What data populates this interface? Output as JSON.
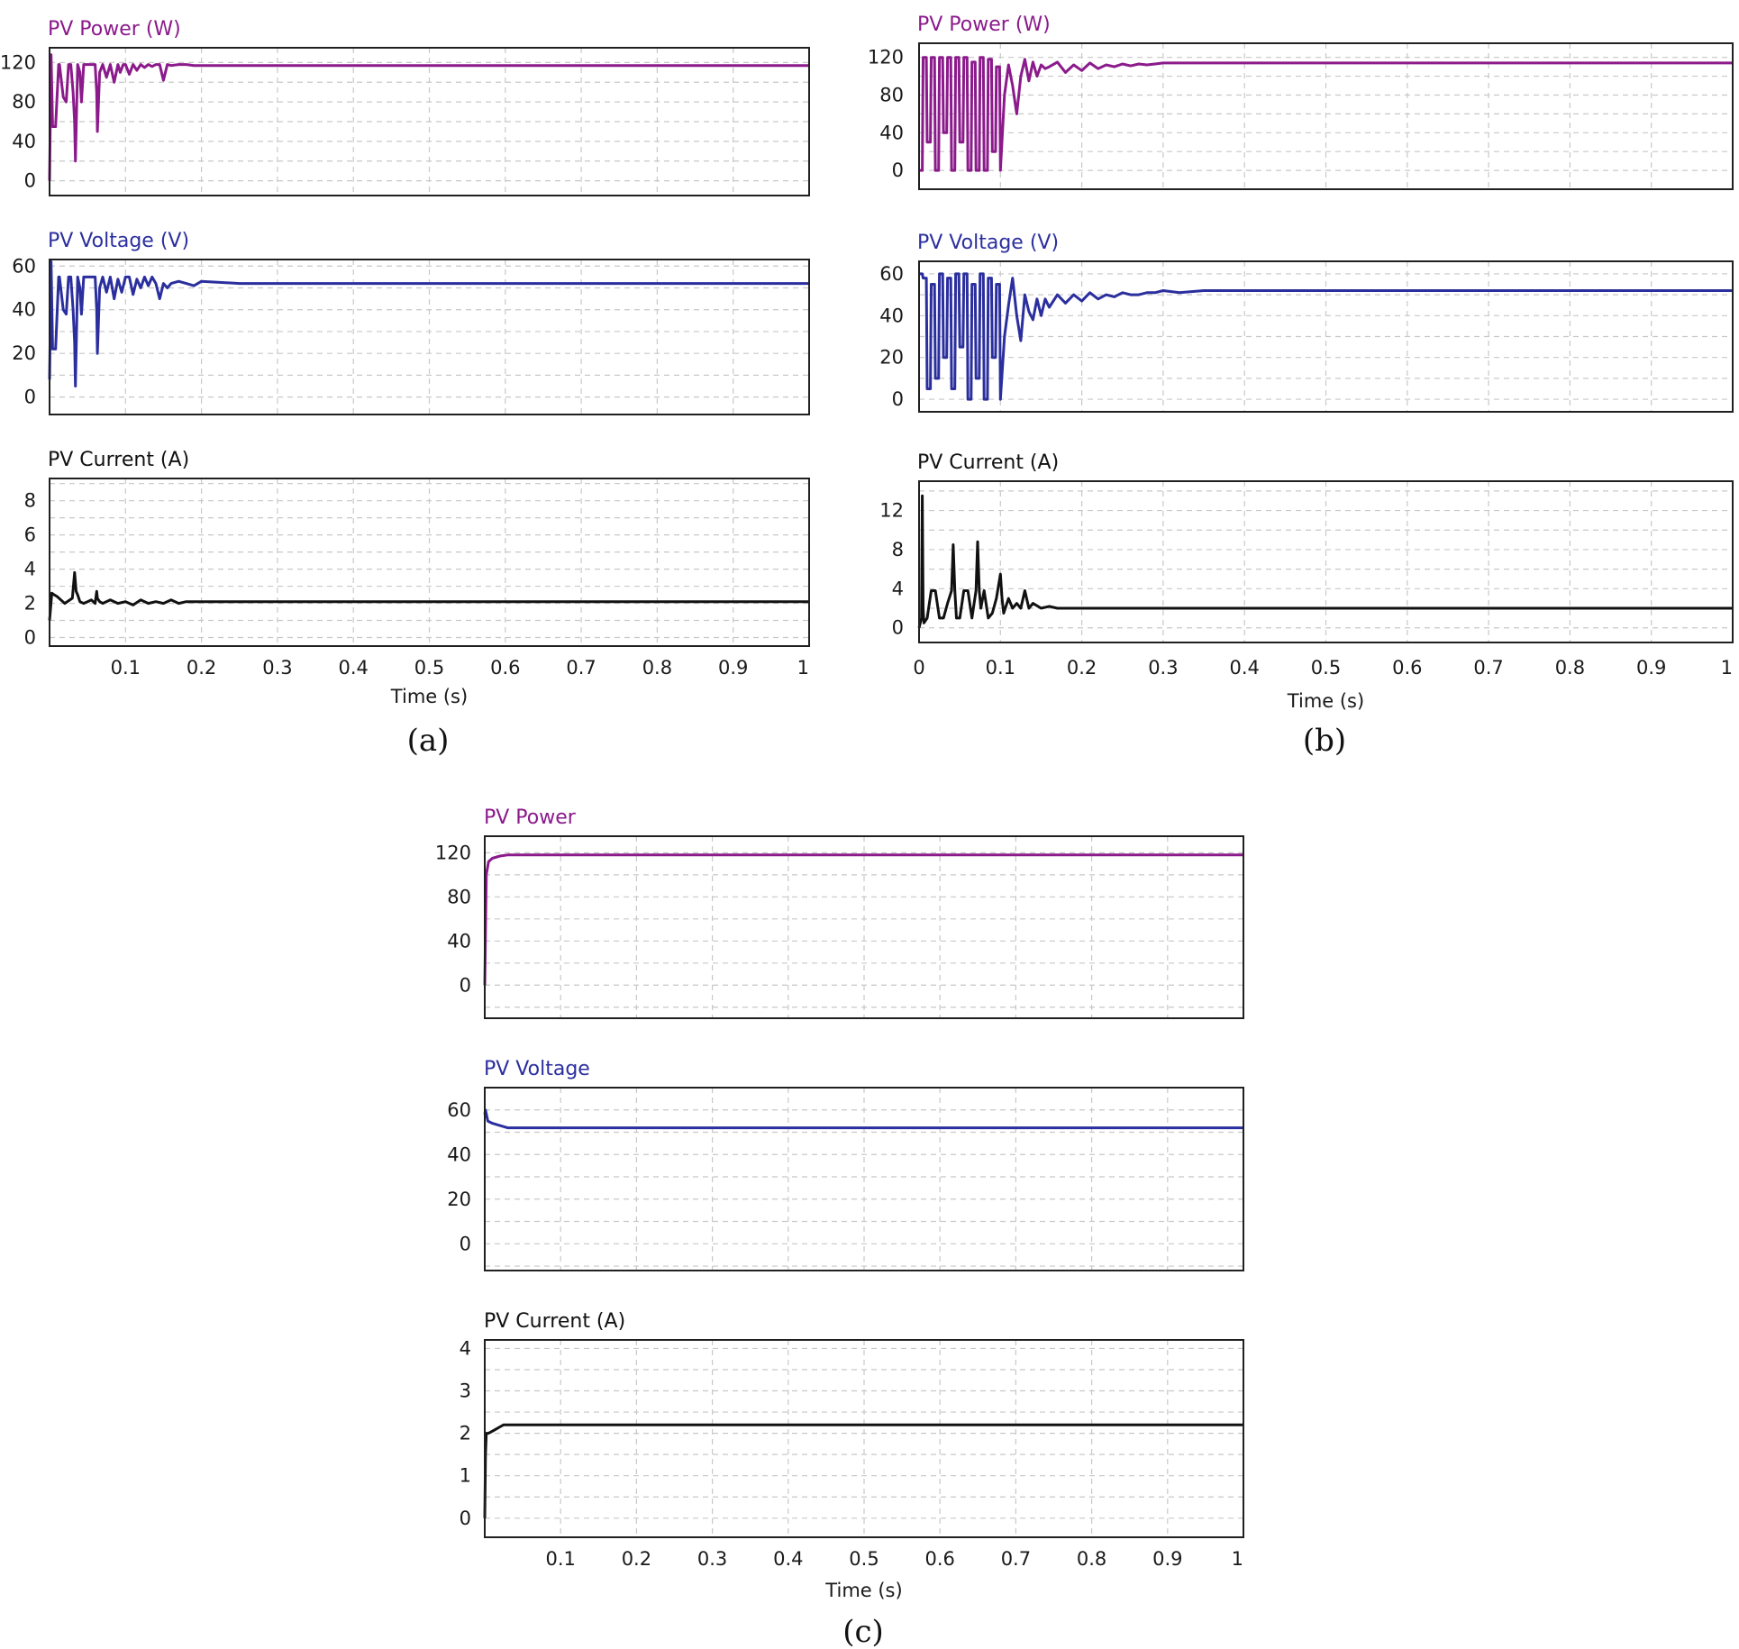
{
  "colors": {
    "power": "#8b1a8b",
    "voltage": "#2b2f9e",
    "current": "#111111"
  },
  "figures": [
    {
      "id": "a",
      "caption": "(a)",
      "xlabel": "Time (s)",
      "xticks": [
        "0.1",
        "0.2",
        "0.3",
        "0.4",
        "0.5",
        "0.6",
        "0.7",
        "0.8",
        "0.9",
        "1"
      ],
      "panels": [
        {
          "type": "line",
          "name": "power",
          "title": "PV Power (W)",
          "color_key": "power",
          "ylim": [
            -15,
            135
          ],
          "yticks": [
            "0",
            "40",
            "80",
            "120"
          ],
          "ytick_values": [
            0,
            40,
            80,
            120
          ],
          "x": [
            0,
            0.002,
            0.004,
            0.008,
            0.012,
            0.013,
            0.018,
            0.022,
            0.025,
            0.028,
            0.031,
            0.033,
            0.034,
            0.037,
            0.04,
            0.042,
            0.045,
            0.05,
            0.055,
            0.06,
            0.062,
            0.063,
            0.066,
            0.07,
            0.075,
            0.08,
            0.085,
            0.09,
            0.093,
            0.097,
            0.1,
            0.105,
            0.11,
            0.115,
            0.12,
            0.125,
            0.13,
            0.135,
            0.14,
            0.145,
            0.15,
            0.155,
            0.16,
            0.17,
            0.18,
            0.19,
            0.2,
            1.0
          ],
          "y": [
            0,
            128,
            55,
            55,
            118,
            118,
            85,
            80,
            118,
            118,
            90,
            60,
            20,
            118,
            110,
            80,
            118,
            118,
            118,
            118,
            90,
            50,
            110,
            118,
            105,
            118,
            100,
            118,
            110,
            118,
            118,
            108,
            118,
            112,
            118,
            115,
            118,
            116,
            118,
            118,
            102,
            118,
            117,
            118,
            118,
            117,
            117,
            117
          ]
        },
        {
          "type": "line",
          "name": "voltage",
          "title": "PV Voltage (V)",
          "color_key": "voltage",
          "ylim": [
            -8,
            63
          ],
          "yticks": [
            "0",
            "20",
            "40",
            "60"
          ],
          "ytick_values": [
            0,
            20,
            40,
            60
          ],
          "x": [
            0,
            0.002,
            0.004,
            0.008,
            0.012,
            0.013,
            0.018,
            0.022,
            0.025,
            0.028,
            0.031,
            0.033,
            0.034,
            0.037,
            0.04,
            0.042,
            0.045,
            0.05,
            0.055,
            0.06,
            0.062,
            0.063,
            0.066,
            0.07,
            0.075,
            0.08,
            0.085,
            0.09,
            0.095,
            0.1,
            0.105,
            0.11,
            0.115,
            0.12,
            0.125,
            0.13,
            0.135,
            0.14,
            0.145,
            0.15,
            0.155,
            0.16,
            0.17,
            0.18,
            0.19,
            0.2,
            0.25,
            0.3,
            1.0
          ],
          "y": [
            8,
            62,
            22,
            22,
            55,
            55,
            40,
            38,
            55,
            55,
            40,
            25,
            5,
            55,
            50,
            38,
            55,
            55,
            55,
            55,
            40,
            20,
            50,
            55,
            48,
            55,
            45,
            54,
            48,
            55,
            55,
            47,
            54,
            50,
            55,
            51,
            55,
            52,
            45,
            52,
            50,
            52,
            53,
            52,
            51,
            53,
            52,
            52,
            52
          ]
        },
        {
          "type": "line",
          "name": "current",
          "title": "PV Current (A)",
          "color_key": "current",
          "ylim": [
            -0.5,
            9.3
          ],
          "yticks": [
            "0",
            "2",
            "4",
            "6",
            "8"
          ],
          "ytick_values": [
            0,
            2,
            4,
            6,
            8
          ],
          "x": [
            0,
            0.003,
            0.006,
            0.01,
            0.015,
            0.02,
            0.03,
            0.033,
            0.035,
            0.037,
            0.04,
            0.045,
            0.05,
            0.055,
            0.06,
            0.062,
            0.063,
            0.066,
            0.07,
            0.08,
            0.09,
            0.1,
            0.11,
            0.12,
            0.13,
            0.14,
            0.15,
            0.16,
            0.17,
            0.18,
            0.19,
            0.2,
            1.0
          ],
          "y": [
            1.0,
            2.6,
            2.5,
            2.4,
            2.2,
            2.0,
            2.3,
            3.8,
            2.7,
            2.5,
            2.1,
            2.0,
            2.1,
            2.2,
            2.0,
            2.7,
            2.3,
            2.1,
            2.0,
            2.2,
            2.0,
            2.1,
            1.9,
            2.2,
            2.0,
            2.1,
            2.0,
            2.2,
            2.0,
            2.1,
            2.1,
            2.1,
            2.1
          ]
        }
      ]
    },
    {
      "id": "b",
      "caption": "(b)",
      "xlabel": "Time (s)",
      "xticks": [
        "0",
        "0.1",
        "0.2",
        "0.3",
        "0.4",
        "0.5",
        "0.6",
        "0.7",
        "0.8",
        "0.9",
        "1"
      ],
      "panels": [
        {
          "type": "line",
          "name": "power",
          "title": "PV Power (W)",
          "color_key": "power",
          "ylim": [
            -20,
            135
          ],
          "yticks": [
            "0",
            "40",
            "80",
            "120"
          ],
          "ytick_values": [
            0,
            40,
            80,
            120
          ],
          "x": [
            0,
            0.004,
            0.005,
            0.009,
            0.01,
            0.014,
            0.015,
            0.019,
            0.02,
            0.024,
            0.025,
            0.029,
            0.03,
            0.034,
            0.035,
            0.039,
            0.04,
            0.044,
            0.045,
            0.049,
            0.05,
            0.054,
            0.055,
            0.059,
            0.06,
            0.064,
            0.065,
            0.069,
            0.07,
            0.074,
            0.075,
            0.079,
            0.08,
            0.084,
            0.085,
            0.089,
            0.09,
            0.094,
            0.095,
            0.099,
            0.1,
            0.105,
            0.11,
            0.115,
            0.12,
            0.125,
            0.13,
            0.135,
            0.14,
            0.145,
            0.15,
            0.155,
            0.16,
            0.17,
            0.18,
            0.19,
            0.2,
            0.21,
            0.22,
            0.23,
            0.24,
            0.25,
            0.26,
            0.27,
            0.28,
            0.29,
            0.3,
            0.32,
            1.0
          ],
          "y": [
            0,
            0,
            120,
            120,
            30,
            30,
            120,
            120,
            0,
            0,
            120,
            120,
            40,
            40,
            120,
            120,
            0,
            0,
            120,
            120,
            30,
            30,
            120,
            120,
            0,
            0,
            115,
            115,
            0,
            0,
            120,
            120,
            0,
            0,
            118,
            118,
            20,
            20,
            110,
            110,
            0,
            80,
            112,
            90,
            60,
            100,
            118,
            95,
            115,
            100,
            112,
            108,
            110,
            115,
            104,
            112,
            106,
            114,
            108,
            112,
            110,
            113,
            111,
            113,
            112,
            113,
            114,
            114,
            114
          ]
        },
        {
          "type": "line",
          "name": "voltage",
          "title": "PV Voltage (V)",
          "color_key": "voltage",
          "ylim": [
            -6,
            66
          ],
          "yticks": [
            "0",
            "20",
            "40",
            "60"
          ],
          "ytick_values": [
            0,
            20,
            40,
            60
          ],
          "x": [
            0,
            0.004,
            0.005,
            0.009,
            0.01,
            0.014,
            0.015,
            0.019,
            0.02,
            0.024,
            0.025,
            0.029,
            0.03,
            0.034,
            0.035,
            0.039,
            0.04,
            0.044,
            0.045,
            0.049,
            0.05,
            0.054,
            0.055,
            0.059,
            0.06,
            0.064,
            0.065,
            0.069,
            0.07,
            0.074,
            0.075,
            0.079,
            0.08,
            0.084,
            0.085,
            0.089,
            0.09,
            0.094,
            0.095,
            0.099,
            0.1,
            0.105,
            0.11,
            0.115,
            0.12,
            0.125,
            0.13,
            0.135,
            0.14,
            0.145,
            0.15,
            0.155,
            0.16,
            0.17,
            0.18,
            0.19,
            0.2,
            0.21,
            0.22,
            0.23,
            0.24,
            0.25,
            0.26,
            0.27,
            0.28,
            0.29,
            0.3,
            0.32,
            0.35,
            0.38,
            1.0
          ],
          "y": [
            60,
            60,
            58,
            58,
            5,
            5,
            55,
            55,
            10,
            10,
            60,
            60,
            20,
            20,
            58,
            58,
            5,
            5,
            60,
            60,
            25,
            25,
            60,
            60,
            0,
            0,
            55,
            55,
            10,
            10,
            60,
            60,
            0,
            0,
            58,
            58,
            20,
            20,
            55,
            55,
            0,
            30,
            45,
            58,
            40,
            28,
            50,
            42,
            38,
            48,
            40,
            48,
            44,
            50,
            46,
            50,
            47,
            51,
            48,
            50,
            49,
            51,
            50,
            50,
            51,
            51,
            52,
            51,
            52,
            52,
            52
          ]
        },
        {
          "type": "line",
          "name": "current",
          "title": "PV Current (A)",
          "color_key": "current",
          "ylim": [
            -1.5,
            15
          ],
          "yticks": [
            "0",
            "4",
            "8",
            "12"
          ],
          "ytick_values": [
            0,
            4,
            8,
            12
          ],
          "x": [
            0,
            0.003,
            0.004,
            0.005,
            0.006,
            0.01,
            0.015,
            0.02,
            0.025,
            0.03,
            0.035,
            0.04,
            0.042,
            0.044,
            0.046,
            0.05,
            0.055,
            0.06,
            0.065,
            0.07,
            0.072,
            0.074,
            0.076,
            0.08,
            0.085,
            0.09,
            0.095,
            0.1,
            0.102,
            0.104,
            0.11,
            0.115,
            0.12,
            0.125,
            0.13,
            0.135,
            0.14,
            0.15,
            0.16,
            0.17,
            1.0
          ],
          "y": [
            0,
            1.0,
            13.5,
            2.0,
            0.5,
            1.0,
            3.8,
            3.8,
            1.0,
            1.0,
            2.5,
            3.8,
            8.5,
            3.8,
            1.0,
            1.0,
            3.8,
            3.8,
            1.0,
            3.8,
            8.8,
            3.8,
            2.0,
            3.8,
            1.0,
            1.5,
            3.0,
            5.5,
            3.0,
            1.5,
            3.0,
            2.0,
            2.5,
            2.0,
            3.8,
            2.0,
            2.5,
            2.0,
            2.2,
            2.0,
            2.0
          ]
        }
      ]
    },
    {
      "id": "c",
      "caption": "(c)",
      "xlabel": "Time (s)",
      "xticks": [
        "0.1",
        "0.2",
        "0.3",
        "0.4",
        "0.5",
        "0.6",
        "0.7",
        "0.8",
        "0.9",
        "1"
      ],
      "panels": [
        {
          "type": "line",
          "name": "power",
          "title": "PV Power",
          "color_key": "power",
          "ylim": [
            -30,
            135
          ],
          "yticks": [
            "0",
            "40",
            "80",
            "120"
          ],
          "ytick_values": [
            0,
            40,
            80,
            120
          ],
          "x": [
            0,
            0.002,
            0.005,
            0.01,
            0.02,
            0.03,
            0.04,
            1.0
          ],
          "y": [
            0,
            100,
            112,
            115,
            117,
            118,
            118,
            118
          ]
        },
        {
          "type": "line",
          "name": "voltage",
          "title": "PV Voltage",
          "color_key": "voltage",
          "ylim": [
            -12,
            70
          ],
          "yticks": [
            "0",
            "20",
            "40",
            "60"
          ],
          "ytick_values": [
            0,
            20,
            40,
            60
          ],
          "x": [
            0,
            0.001,
            0.004,
            0.01,
            0.02,
            0.03,
            1.0
          ],
          "y": [
            58,
            60,
            55,
            54,
            53,
            52,
            52
          ]
        },
        {
          "type": "line",
          "name": "current",
          "title": "PV Current (A)",
          "color_key": "current",
          "ylim": [
            -0.45,
            4.2
          ],
          "yticks": [
            "0",
            "1",
            "2",
            "3",
            "4"
          ],
          "ytick_values": [
            0,
            1,
            2,
            3,
            4
          ],
          "x": [
            0,
            0.001,
            0.002,
            0.005,
            0.01,
            0.015,
            0.02,
            0.025,
            0.03,
            1.0
          ],
          "y": [
            0,
            1.5,
            2.0,
            2.0,
            2.05,
            2.1,
            2.15,
            2.2,
            2.2,
            2.2
          ]
        }
      ]
    }
  ]
}
